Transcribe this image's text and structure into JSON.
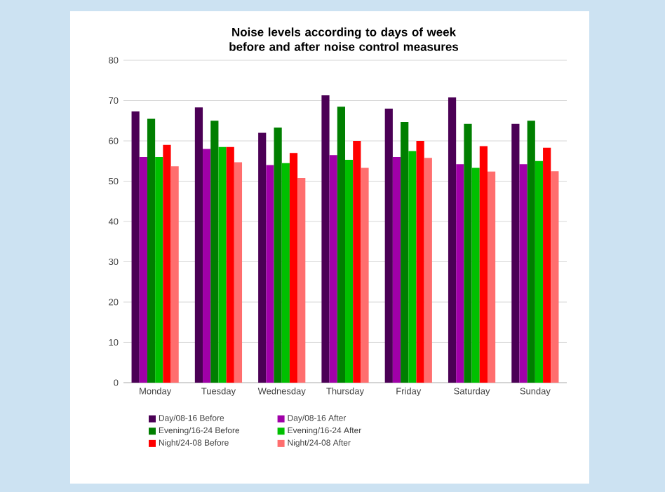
{
  "chart_data": {
    "type": "bar",
    "title": "Noise levels according to days of week before and after noise control measures",
    "categories": [
      "Monday",
      "Tuesday",
      "Wednesday",
      "Thursday",
      "Friday",
      "Saturday",
      "Sunday"
    ],
    "series": [
      {
        "name": "Day/08-16 Before",
        "color": "#4b0055",
        "values": [
          67.3,
          68.3,
          62,
          71.3,
          68,
          70.8,
          64.2
        ]
      },
      {
        "name": "Day/08-16 After",
        "color": "#a000a8",
        "values": [
          56,
          58,
          54,
          56.5,
          56,
          54.2,
          54.2
        ]
      },
      {
        "name": "Evening/16-24 Before",
        "color": "#007f00",
        "values": [
          65.5,
          65,
          63.3,
          68.5,
          64.7,
          64.2,
          65
        ]
      },
      {
        "name": "Evening/16-24 After",
        "color": "#00c000",
        "values": [
          56,
          58.5,
          54.5,
          55.3,
          57.5,
          53.3,
          55
        ]
      },
      {
        "name": "Night/24-08 Before",
        "color": "#ff0000",
        "values": [
          59,
          58.5,
          57,
          60,
          60,
          58.7,
          58.3
        ]
      },
      {
        "name": "Night/24-08 After",
        "color": "#ff6e6e",
        "values": [
          53.7,
          54.7,
          50.8,
          53.3,
          55.8,
          52.4,
          52.5
        ]
      }
    ],
    "ylim": [
      0,
      80
    ],
    "yticks": [
      0,
      10,
      20,
      30,
      40,
      50,
      60,
      70,
      80
    ],
    "grid": "y",
    "legend": "bottom"
  }
}
